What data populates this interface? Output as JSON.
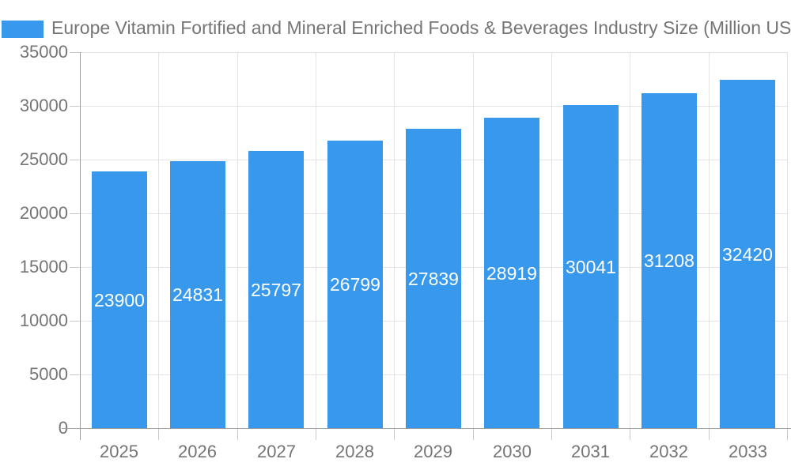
{
  "title": "Europe Vitamin Fortified and Mineral Enriched Foods & Beverages Industry Size (Million USD)",
  "legend": {
    "swatch_color": "#3899EC"
  },
  "colors": {
    "bar": "#3899EC",
    "bar_label": "#ffffff",
    "title_text": "#757575",
    "axis_text": "#757575",
    "gridline": "#e3e3e3",
    "axis_line": "#9e9e9e",
    "tick": "#c8c8c8",
    "background": "#ffffff"
  },
  "chart_data": {
    "type": "bar",
    "title": "Europe Vitamin Fortified and Mineral Enriched Foods & Beverages Industry Size (Million USD)",
    "categories": [
      "2025",
      "2026",
      "2027",
      "2028",
      "2029",
      "2030",
      "2031",
      "2032",
      "2033"
    ],
    "values": [
      23900,
      24831,
      25797,
      26799,
      27839,
      28919,
      30041,
      31208,
      32420
    ],
    "ytick_labels": [
      "0",
      "5000",
      "10000",
      "15000",
      "20000",
      "25000",
      "30000",
      "35000"
    ],
    "yticks": [
      0,
      5000,
      10000,
      15000,
      20000,
      25000,
      30000,
      35000
    ],
    "ylim": [
      0,
      35000
    ],
    "xlabel": "",
    "ylabel": "",
    "grid": true,
    "legend_position": "top-left",
    "data_labels": "inside-center-white"
  }
}
